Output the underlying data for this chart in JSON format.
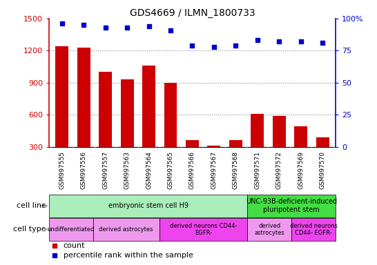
{
  "title": "GDS4669 / ILMN_1800733",
  "samples": [
    "GSM997555",
    "GSM997556",
    "GSM997557",
    "GSM997563",
    "GSM997564",
    "GSM997565",
    "GSM997566",
    "GSM997567",
    "GSM997568",
    "GSM997571",
    "GSM997572",
    "GSM997569",
    "GSM997570"
  ],
  "counts": [
    1240,
    1230,
    1000,
    930,
    1060,
    900,
    360,
    310,
    360,
    610,
    590,
    490,
    390
  ],
  "percentiles": [
    96,
    95,
    93,
    93,
    94,
    91,
    79,
    78,
    79,
    83,
    82,
    82,
    81
  ],
  "ylim_left": [
    300,
    1500
  ],
  "ylim_right": [
    0,
    100
  ],
  "yticks_left": [
    300,
    600,
    900,
    1200,
    1500
  ],
  "yticks_right": [
    0,
    25,
    50,
    75,
    100
  ],
  "bar_color": "#cc0000",
  "dot_color": "#0000cc",
  "grid_color": "#888888",
  "xtick_bg": "#cccccc",
  "cell_line_groups": [
    {
      "label": "embryonic stem cell H9",
      "start": 0,
      "end": 8,
      "color": "#aaeebb"
    },
    {
      "label": "UNC-93B-deficient-induced\npluripotent stem",
      "start": 9,
      "end": 12,
      "color": "#44dd44"
    }
  ],
  "cell_type_groups": [
    {
      "label": "undifferentiated",
      "start": 0,
      "end": 1,
      "color": "#ee99ee"
    },
    {
      "label": "derived astrocytes",
      "start": 2,
      "end": 4,
      "color": "#ee99ee"
    },
    {
      "label": "derived neurons CD44-\nEGFR-",
      "start": 5,
      "end": 8,
      "color": "#ee44ee"
    },
    {
      "label": "derived\nastrocytes",
      "start": 9,
      "end": 10,
      "color": "#ee99ee"
    },
    {
      "label": "derived neurons\nCD44- EGFR-",
      "start": 11,
      "end": 12,
      "color": "#ee44ee"
    }
  ],
  "cell_line_label": "cell line",
  "cell_type_label": "cell type",
  "legend_count": "count",
  "legend_pct": "percentile rank within the sample",
  "arrow_color": "#aaaaaa"
}
